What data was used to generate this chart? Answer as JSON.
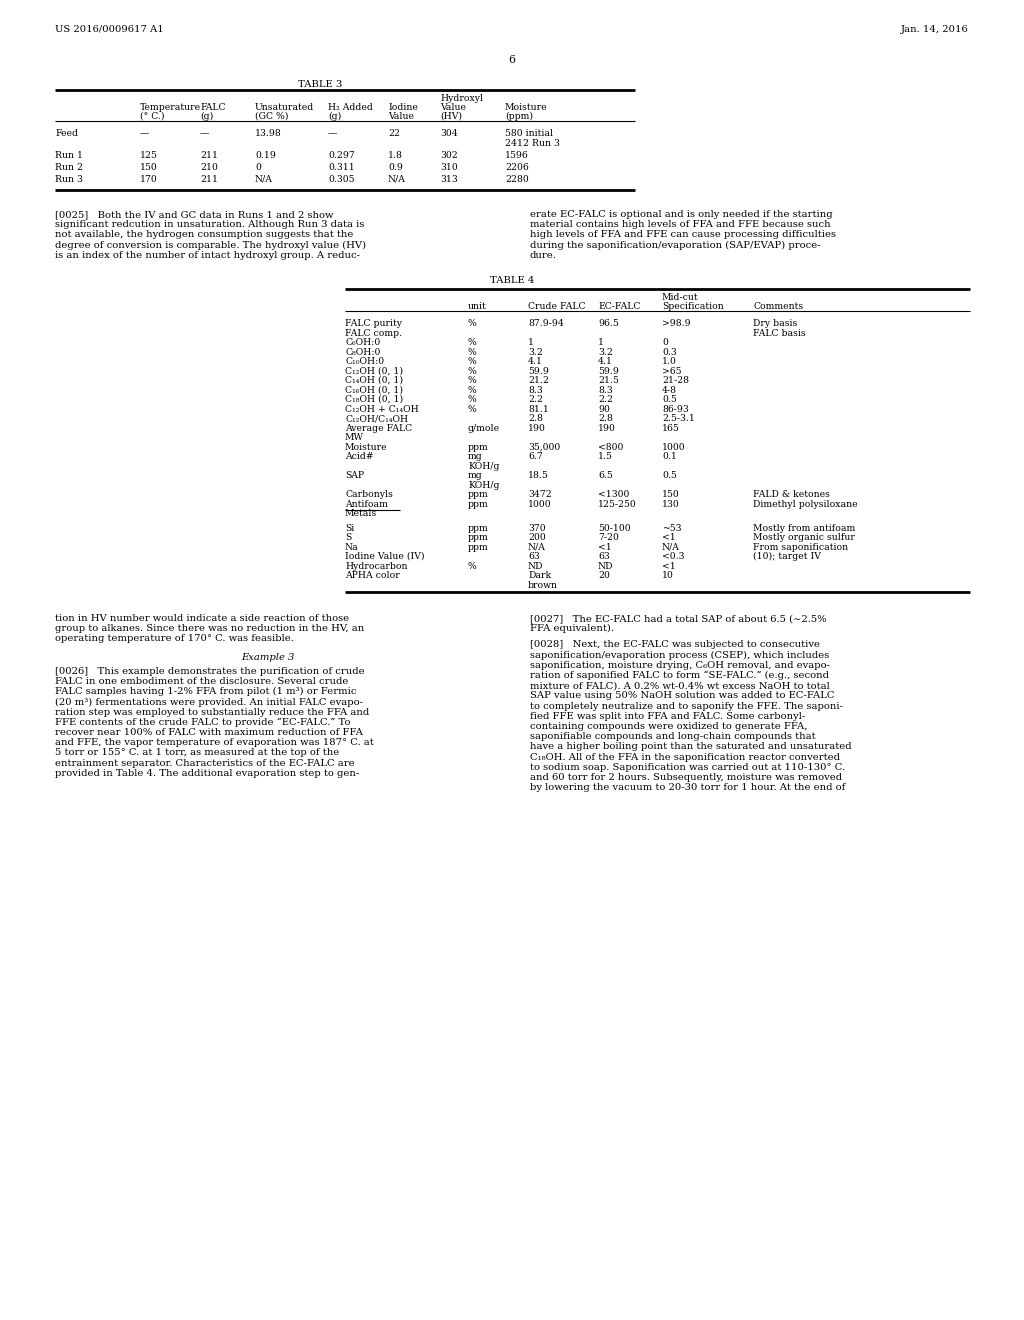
{
  "header_left": "US 2016/0009617 A1",
  "header_right": "Jan. 14, 2016",
  "page_number": "6",
  "background_color": "#ffffff",
  "text_color": "#000000"
}
